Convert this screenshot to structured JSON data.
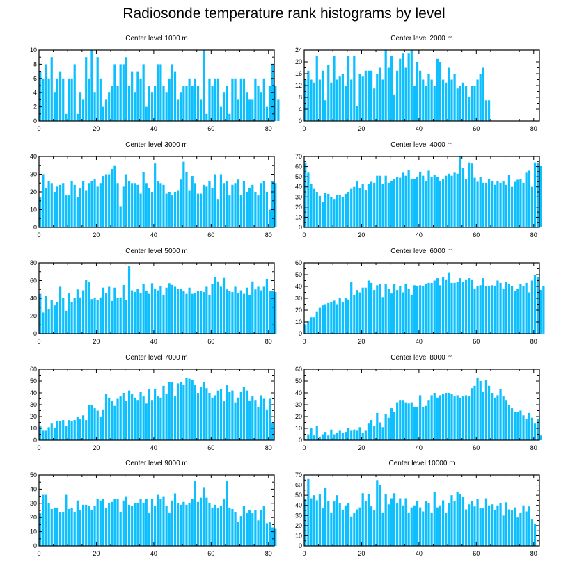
{
  "page_title": "Radiosonde temperature rank histograms by level",
  "bar_color": "#0DBFFF",
  "chart_data": [
    {
      "type": "bar",
      "title": "Center level 1000 m",
      "xlim": [
        0,
        82
      ],
      "ylim": [
        0,
        10
      ],
      "xticks": [
        0,
        20,
        40,
        60,
        80
      ],
      "yticks": [
        0,
        2,
        4,
        6,
        8,
        10
      ],
      "ytick_side": "left",
      "values": [
        7,
        6,
        8,
        6,
        9,
        4,
        6,
        7,
        6,
        1,
        6,
        6,
        8,
        1,
        4,
        3,
        9,
        6,
        10,
        4,
        9,
        6,
        2,
        3,
        4,
        5,
        8,
        5,
        8,
        8,
        9,
        5,
        7,
        4,
        7,
        6,
        8,
        2,
        5,
        4,
        5,
        8,
        8,
        5,
        4,
        6,
        8,
        7,
        3,
        4,
        5,
        5,
        6,
        5,
        6,
        5,
        3,
        10,
        1,
        6,
        5,
        6,
        6,
        2,
        4,
        5,
        1,
        6,
        6,
        3,
        6,
        6,
        4,
        3,
        3,
        6,
        5,
        4,
        6,
        2,
        5,
        8,
        5,
        3
      ]
    },
    {
      "type": "bar",
      "title": "Center level 2000 m",
      "xlim": [
        0,
        82
      ],
      "ylim": [
        0,
        24
      ],
      "xticks": [
        0,
        20,
        40,
        60,
        80
      ],
      "yticks": [
        0,
        4,
        8,
        12,
        16,
        20,
        24
      ],
      "ytick_side": "left",
      "values": [
        14,
        17,
        14,
        13,
        22,
        14,
        17,
        7,
        19,
        13,
        22,
        14,
        15,
        16,
        12,
        22,
        14,
        22,
        5,
        16,
        15,
        17,
        17,
        17,
        11,
        16,
        18,
        14,
        24,
        18,
        22,
        9,
        17,
        21,
        23,
        18,
        23,
        24,
        12,
        20,
        17,
        14,
        12,
        16,
        14,
        12,
        21,
        20,
        14,
        13,
        18,
        14,
        16,
        11,
        12,
        13,
        12,
        8,
        12,
        12,
        14,
        16,
        18,
        7,
        7
      ]
    },
    {
      "type": "bar",
      "title": "Center level 3000 m",
      "xlim": [
        0,
        82
      ],
      "ylim": [
        0,
        40
      ],
      "xticks": [
        0,
        20,
        40,
        60,
        80
      ],
      "yticks": [
        0,
        10,
        20,
        30,
        40
      ],
      "ytick_side": "left",
      "values": [
        17,
        30,
        22,
        26,
        25,
        20,
        23,
        24,
        25,
        18,
        18,
        26,
        24,
        17,
        22,
        26,
        21,
        25,
        26,
        27,
        23,
        25,
        29,
        30,
        30,
        33,
        35,
        25,
        12,
        23,
        30,
        26,
        25,
        25,
        24,
        19,
        31,
        25,
        22,
        20,
        36,
        26,
        25,
        24,
        19,
        20,
        18,
        20,
        21,
        27,
        37,
        31,
        21,
        29,
        25,
        19,
        19,
        24,
        23,
        26,
        22,
        30,
        16,
        30,
        25,
        26,
        18,
        24,
        25,
        27,
        18,
        26,
        20,
        22,
        24,
        20,
        18,
        25,
        26,
        20,
        10,
        26,
        25
      ]
    },
    {
      "type": "bar",
      "title": "Center level 4000 m",
      "xlim": [
        0,
        82
      ],
      "ylim": [
        0,
        70
      ],
      "xticks": [
        0,
        20,
        40,
        60,
        80
      ],
      "yticks": [
        0,
        10,
        20,
        30,
        40,
        50,
        60,
        70
      ],
      "ytick_side": "left",
      "values": [
        64,
        54,
        43,
        38,
        35,
        31,
        25,
        34,
        33,
        30,
        28,
        32,
        32,
        30,
        33,
        35,
        38,
        40,
        46,
        39,
        43,
        37,
        43,
        45,
        44,
        51,
        51,
        43,
        51,
        44,
        46,
        48,
        50,
        49,
        54,
        51,
        57,
        48,
        48,
        50,
        55,
        51,
        46,
        56,
        50,
        52,
        50,
        46,
        48,
        51,
        53,
        51,
        54,
        53,
        70,
        59,
        48,
        64,
        63,
        49,
        45,
        50,
        44,
        44,
        48,
        46,
        42,
        46,
        44,
        46,
        42,
        52,
        40,
        45,
        47,
        48,
        44,
        54,
        56,
        40,
        64,
        64,
        61
      ]
    },
    {
      "type": "bar",
      "title": "Center level 5000 m",
      "xlim": [
        0,
        82
      ],
      "ylim": [
        0,
        80
      ],
      "xticks": [
        0,
        20,
        40,
        60,
        80
      ],
      "yticks": [
        0,
        20,
        40,
        60,
        80
      ],
      "ytick_side": "left",
      "values": [
        45,
        24,
        43,
        28,
        38,
        32,
        36,
        53,
        40,
        26,
        46,
        36,
        40,
        50,
        41,
        49,
        61,
        58,
        39,
        40,
        38,
        41,
        52,
        46,
        53,
        37,
        52,
        40,
        41,
        55,
        38,
        76,
        49,
        47,
        51,
        46,
        56,
        48,
        45,
        57,
        51,
        49,
        54,
        44,
        52,
        57,
        55,
        53,
        51,
        51,
        48,
        45,
        52,
        45,
        46,
        48,
        48,
        47,
        53,
        44,
        56,
        64,
        59,
        53,
        63,
        50,
        48,
        47,
        53,
        46,
        49,
        45,
        52,
        44,
        59,
        50,
        53,
        49,
        53,
        62,
        48,
        48,
        47
      ]
    },
    {
      "type": "bar",
      "title": "Center level 6000 m",
      "xlim": [
        0,
        82
      ],
      "ylim": [
        0,
        60
      ],
      "xticks": [
        0,
        20,
        40,
        60,
        80
      ],
      "yticks": [
        0,
        10,
        20,
        30,
        40,
        50,
        60
      ],
      "ytick_side": "left",
      "values": [
        8,
        11,
        14,
        14,
        19,
        22,
        24,
        25,
        26,
        27,
        28,
        25,
        30,
        27,
        30,
        29,
        44,
        33,
        37,
        35,
        39,
        39,
        45,
        43,
        37,
        41,
        42,
        31,
        42,
        38,
        34,
        42,
        37,
        40,
        35,
        42,
        38,
        33,
        41,
        40,
        41,
        40,
        42,
        43,
        43,
        45,
        47,
        41,
        48,
        46,
        52,
        43,
        43,
        44,
        47,
        44,
        46,
        47,
        46,
        38,
        40,
        41,
        47,
        40,
        40,
        41,
        40,
        45,
        43,
        38,
        44,
        42,
        40,
        36,
        38,
        42,
        40,
        43,
        35,
        45,
        50,
        48,
        37,
        40
      ]
    },
    {
      "type": "bar",
      "title": "Center level 7000 m",
      "xlim": [
        0,
        82
      ],
      "ylim": [
        0,
        60
      ],
      "xticks": [
        0,
        20,
        40,
        60,
        80
      ],
      "yticks": [
        0,
        10,
        20,
        30,
        40,
        50,
        60
      ],
      "ytick_side": "left",
      "values": [
        12,
        8,
        8,
        11,
        14,
        10,
        16,
        16,
        17,
        12,
        17,
        16,
        17,
        20,
        18,
        21,
        17,
        30,
        30,
        27,
        25,
        20,
        26,
        39,
        36,
        33,
        29,
        35,
        37,
        40,
        33,
        42,
        39,
        36,
        34,
        41,
        37,
        31,
        43,
        34,
        43,
        37,
        36,
        46,
        39,
        49,
        49,
        37,
        48,
        49,
        47,
        53,
        52,
        51,
        47,
        40,
        45,
        49,
        44,
        40,
        36,
        38,
        42,
        43,
        33,
        47,
        41,
        42,
        32,
        36,
        41,
        45,
        42,
        33,
        37,
        34,
        28,
        38,
        35,
        26,
        35,
        15
      ]
    },
    {
      "type": "bar",
      "title": "Center level 8000 m",
      "xlim": [
        0,
        82
      ],
      "ylim": [
        0,
        60
      ],
      "xticks": [
        0,
        20,
        40,
        60,
        80
      ],
      "yticks": [
        0,
        10,
        20,
        30,
        40,
        50,
        60
      ],
      "ytick_side": "left",
      "values": [
        1,
        5,
        10,
        4,
        12,
        3,
        5,
        7,
        4,
        9,
        5,
        6,
        8,
        6,
        7,
        10,
        8,
        9,
        8,
        11,
        6,
        8,
        14,
        17,
        12,
        23,
        15,
        11,
        22,
        19,
        27,
        24,
        32,
        34,
        34,
        32,
        31,
        32,
        28,
        28,
        38,
        28,
        29,
        34,
        38,
        40,
        36,
        38,
        39,
        40,
        40,
        39,
        37,
        38,
        36,
        37,
        38,
        37,
        44,
        46,
        53,
        50,
        41,
        51,
        46,
        40,
        36,
        38,
        43,
        37,
        34,
        30,
        27,
        24,
        24,
        25,
        21,
        18,
        23,
        19,
        14,
        18,
        4
      ]
    },
    {
      "type": "bar",
      "title": "Center level 9000 m",
      "xlim": [
        0,
        82
      ],
      "ylim": [
        0,
        50
      ],
      "xticks": [
        0,
        20,
        40,
        60,
        80
      ],
      "yticks": [
        0,
        10,
        20,
        30,
        40,
        50
      ],
      "ytick_side": "left",
      "values": [
        23,
        36,
        36,
        30,
        26,
        27,
        27,
        24,
        24,
        36,
        26,
        27,
        24,
        32,
        25,
        29,
        29,
        28,
        25,
        28,
        33,
        32,
        33,
        27,
        30,
        31,
        33,
        33,
        24,
        32,
        35,
        29,
        28,
        30,
        30,
        33,
        30,
        33,
        23,
        33,
        28,
        36,
        33,
        35,
        28,
        23,
        32,
        37,
        30,
        29,
        31,
        29,
        30,
        33,
        46,
        31,
        34,
        41,
        34,
        30,
        27,
        29,
        27,
        28,
        33,
        46,
        27,
        26,
        24,
        17,
        21,
        28,
        23,
        25,
        23,
        25,
        18,
        25,
        28,
        16,
        17,
        13,
        12
      ]
    },
    {
      "type": "bar",
      "title": "Center level 10000 m",
      "xlim": [
        0,
        82
      ],
      "ylim": [
        0,
        70
      ],
      "xticks": [
        0,
        20,
        40,
        60,
        80
      ],
      "yticks": [
        0,
        10,
        20,
        30,
        40,
        50,
        60,
        70
      ],
      "ytick_side": "left",
      "values": [
        46,
        66,
        47,
        50,
        45,
        51,
        37,
        57,
        44,
        33,
        44,
        50,
        42,
        35,
        40,
        42,
        29,
        33,
        36,
        38,
        52,
        44,
        51,
        39,
        35,
        65,
        60,
        33,
        51,
        41,
        47,
        52,
        42,
        47,
        40,
        47,
        33,
        38,
        40,
        44,
        38,
        34,
        44,
        42,
        33,
        53,
        38,
        40,
        45,
        33,
        42,
        50,
        44,
        53,
        51,
        48,
        36,
        41,
        44,
        39,
        46,
        37,
        37,
        47,
        40,
        41,
        35,
        40,
        42,
        30,
        43,
        36,
        35,
        38,
        28,
        33,
        40,
        34,
        39,
        26,
        22
      ]
    }
  ]
}
